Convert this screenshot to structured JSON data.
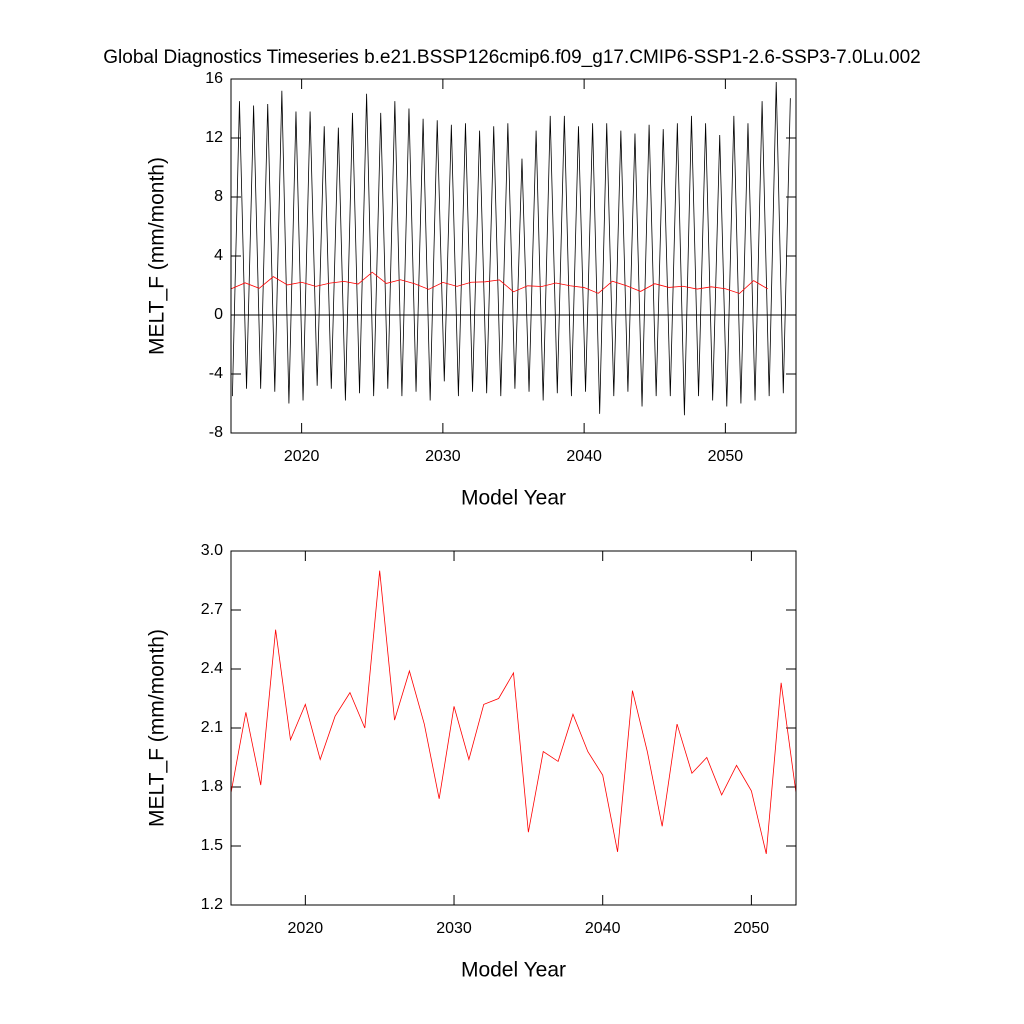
{
  "chart_data": [
    {
      "type": "line",
      "title": "Global Diagnostics Timeseries b.e21.BSSP126cmip6.f09_g17.CMIP6-SSP1-2.6-SSP3-7.0Lu.002",
      "xlabel": "Model Year",
      "ylabel": "MELT_F (mm/month)",
      "xlim": [
        2015,
        2055
      ],
      "xticks": [
        2020,
        2030,
        2040,
        2050
      ],
      "ylim": [
        -8,
        16
      ],
      "yticks": [
        -8,
        -4,
        0,
        4,
        8,
        12,
        16
      ],
      "zero_line": true,
      "series": [
        {
          "color": "#000000",
          "x": [
            2015.1,
            2015.6,
            2016.1,
            2016.6,
            2017.1,
            2017.6,
            2018.1,
            2018.6,
            2019.1,
            2019.6,
            2020.1,
            2020.6,
            2021.1,
            2021.6,
            2022.1,
            2022.6,
            2023.1,
            2023.6,
            2024.1,
            2024.6,
            2025.1,
            2025.6,
            2026.1,
            2026.6,
            2027.1,
            2027.6,
            2028.1,
            2028.6,
            2029.1,
            2029.6,
            2030.1,
            2030.6,
            2031.1,
            2031.6,
            2032.1,
            2032.6,
            2033.1,
            2033.6,
            2034.1,
            2034.6,
            2035.1,
            2035.6,
            2036.1,
            2036.6,
            2037.1,
            2037.6,
            2038.1,
            2038.6,
            2039.1,
            2039.6,
            2040.1,
            2040.6,
            2041.1,
            2041.6,
            2042.1,
            2042.6,
            2043.1,
            2043.6,
            2044.1,
            2044.6,
            2045.1,
            2045.6,
            2046.1,
            2046.6,
            2047.1,
            2047.6,
            2048.1,
            2048.6,
            2049.1,
            2049.6,
            2050.1,
            2050.6,
            2051.1,
            2051.6,
            2052.1,
            2052.6,
            2053.1,
            2053.6,
            2054.1,
            2054.6
          ],
          "values": [
            -5.5,
            14.5,
            -5.0,
            14.2,
            -5.0,
            14.3,
            -5.2,
            15.2,
            -6.0,
            13.8,
            -5.8,
            13.8,
            -4.8,
            12.8,
            -5.0,
            12.7,
            -5.8,
            13.7,
            -5.3,
            15.0,
            -5.5,
            13.7,
            -5.0,
            14.5,
            -5.5,
            14.0,
            -5.2,
            13.3,
            -5.8,
            13.2,
            -4.5,
            12.9,
            -5.5,
            13.0,
            -5.2,
            12.5,
            -5.3,
            12.8,
            -5.5,
            13.0,
            -5.0,
            10.6,
            -5.2,
            12.5,
            -5.8,
            13.5,
            -5.3,
            13.5,
            -5.5,
            12.8,
            -5.2,
            13.0,
            -6.7,
            13.0,
            -5.5,
            12.5,
            -5.2,
            12.3,
            -6.2,
            12.9,
            -5.5,
            12.6,
            -5.5,
            13.0,
            -6.8,
            13.5,
            -5.5,
            13.0,
            -5.8,
            12.2,
            -6.2,
            13.5,
            -6.0,
            13.0,
            -5.8,
            14.5,
            -5.5,
            15.8,
            -5.3,
            14.7
          ]
        },
        {
          "color": "#ff0000",
          "x": [
            2015,
            2016,
            2017,
            2018,
            2019,
            2020,
            2021,
            2022,
            2023,
            2024,
            2025,
            2026,
            2027,
            2028,
            2029,
            2030,
            2031,
            2032,
            2033,
            2034,
            2035,
            2036,
            2037,
            2038,
            2039,
            2040,
            2041,
            2042,
            2043,
            2044,
            2045,
            2046,
            2047,
            2048,
            2049,
            2050,
            2051,
            2052,
            2053
          ],
          "values": [
            1.77,
            2.18,
            1.81,
            2.6,
            2.04,
            2.22,
            1.94,
            2.16,
            2.28,
            2.1,
            2.9,
            2.14,
            2.39,
            2.12,
            1.74,
            2.21,
            1.94,
            2.22,
            2.25,
            2.38,
            1.57,
            1.98,
            1.93,
            2.17,
            1.98,
            1.86,
            1.47,
            2.29,
            1.98,
            1.6,
            2.12,
            1.87,
            1.95,
            1.76,
            1.91,
            1.78,
            1.46,
            2.33,
            1.77
          ]
        }
      ]
    },
    {
      "type": "line",
      "xlabel": "Model Year",
      "ylabel": "MELT_F (mm/month)",
      "xlim": [
        2015,
        2053
      ],
      "xticks": [
        2020,
        2030,
        2040,
        2050
      ],
      "ylim": [
        1.2,
        3.0
      ],
      "yticks": [
        1.2,
        1.5,
        1.8,
        2.1,
        2.4,
        2.7,
        {
          "value": 3.0,
          "label": "3.0"
        }
      ],
      "series": [
        {
          "color": "#ff0000",
          "x": [
            2015,
            2016,
            2017,
            2018,
            2019,
            2020,
            2021,
            2022,
            2023,
            2024,
            2025,
            2026,
            2027,
            2028,
            2029,
            2030,
            2031,
            2032,
            2033,
            2034,
            2035,
            2036,
            2037,
            2038,
            2039,
            2040,
            2041,
            2042,
            2043,
            2044,
            2045,
            2046,
            2047,
            2048,
            2049,
            2050,
            2051,
            2052,
            2053
          ],
          "values": [
            1.77,
            2.18,
            1.81,
            2.6,
            2.04,
            2.22,
            1.94,
            2.16,
            2.28,
            2.1,
            2.9,
            2.14,
            2.39,
            2.12,
            1.74,
            2.21,
            1.94,
            2.22,
            2.25,
            2.38,
            1.57,
            1.98,
            1.93,
            2.17,
            1.98,
            1.86,
            1.47,
            2.29,
            1.98,
            1.6,
            2.12,
            1.87,
            1.95,
            1.76,
            1.91,
            1.78,
            1.46,
            2.33,
            1.77
          ]
        }
      ]
    }
  ]
}
